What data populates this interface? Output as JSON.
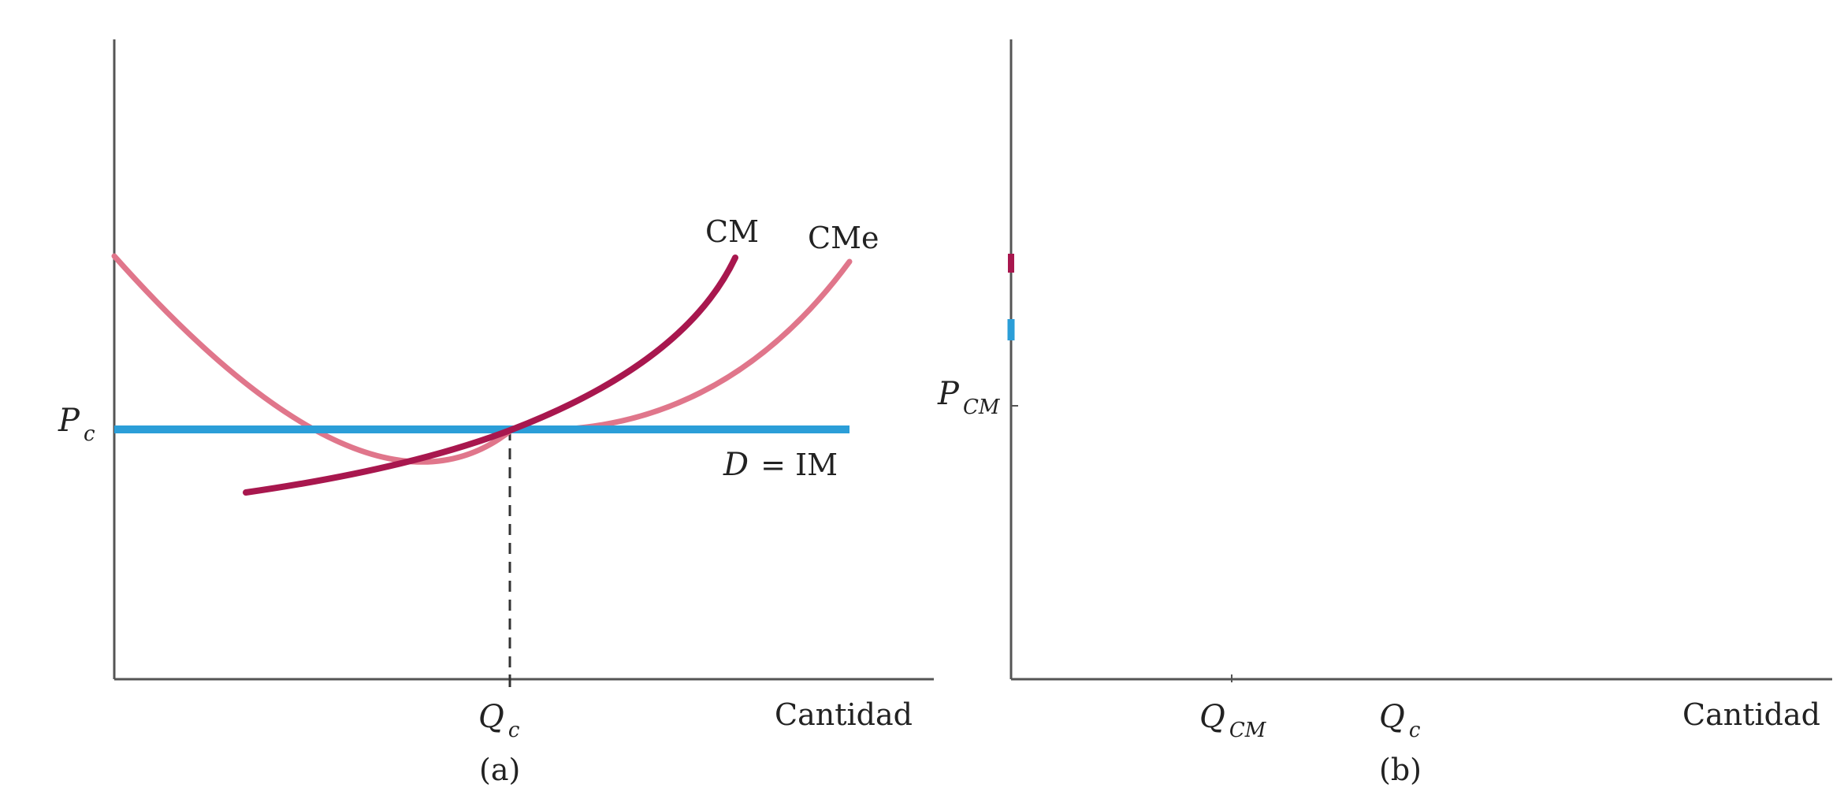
{
  "panel_a": {
    "caption": "(a)",
    "x_axis_label": "Cantidad",
    "price_label": {
      "main": "P",
      "sub": "c"
    },
    "quantity_label": {
      "main": "Q",
      "sub": "c"
    },
    "curves": {
      "marginal_cost": "CM",
      "average_cost": "CMe",
      "demand": {
        "left": "D",
        "right": "= IM"
      }
    }
  },
  "panel_b": {
    "caption": "(b)",
    "x_axis_label": "Cantidad",
    "price_label": {
      "main": "P",
      "sub": "CM"
    },
    "quantity_labels": [
      {
        "main": "Q",
        "sub": "CM"
      },
      {
        "main": "Q",
        "sub": "c"
      }
    ]
  },
  "colors": {
    "axis": "#555555",
    "marginal_cost": "#a8174e",
    "average_cost": "#e0768b",
    "demand": "#2b9ed8",
    "text": "#222222"
  }
}
